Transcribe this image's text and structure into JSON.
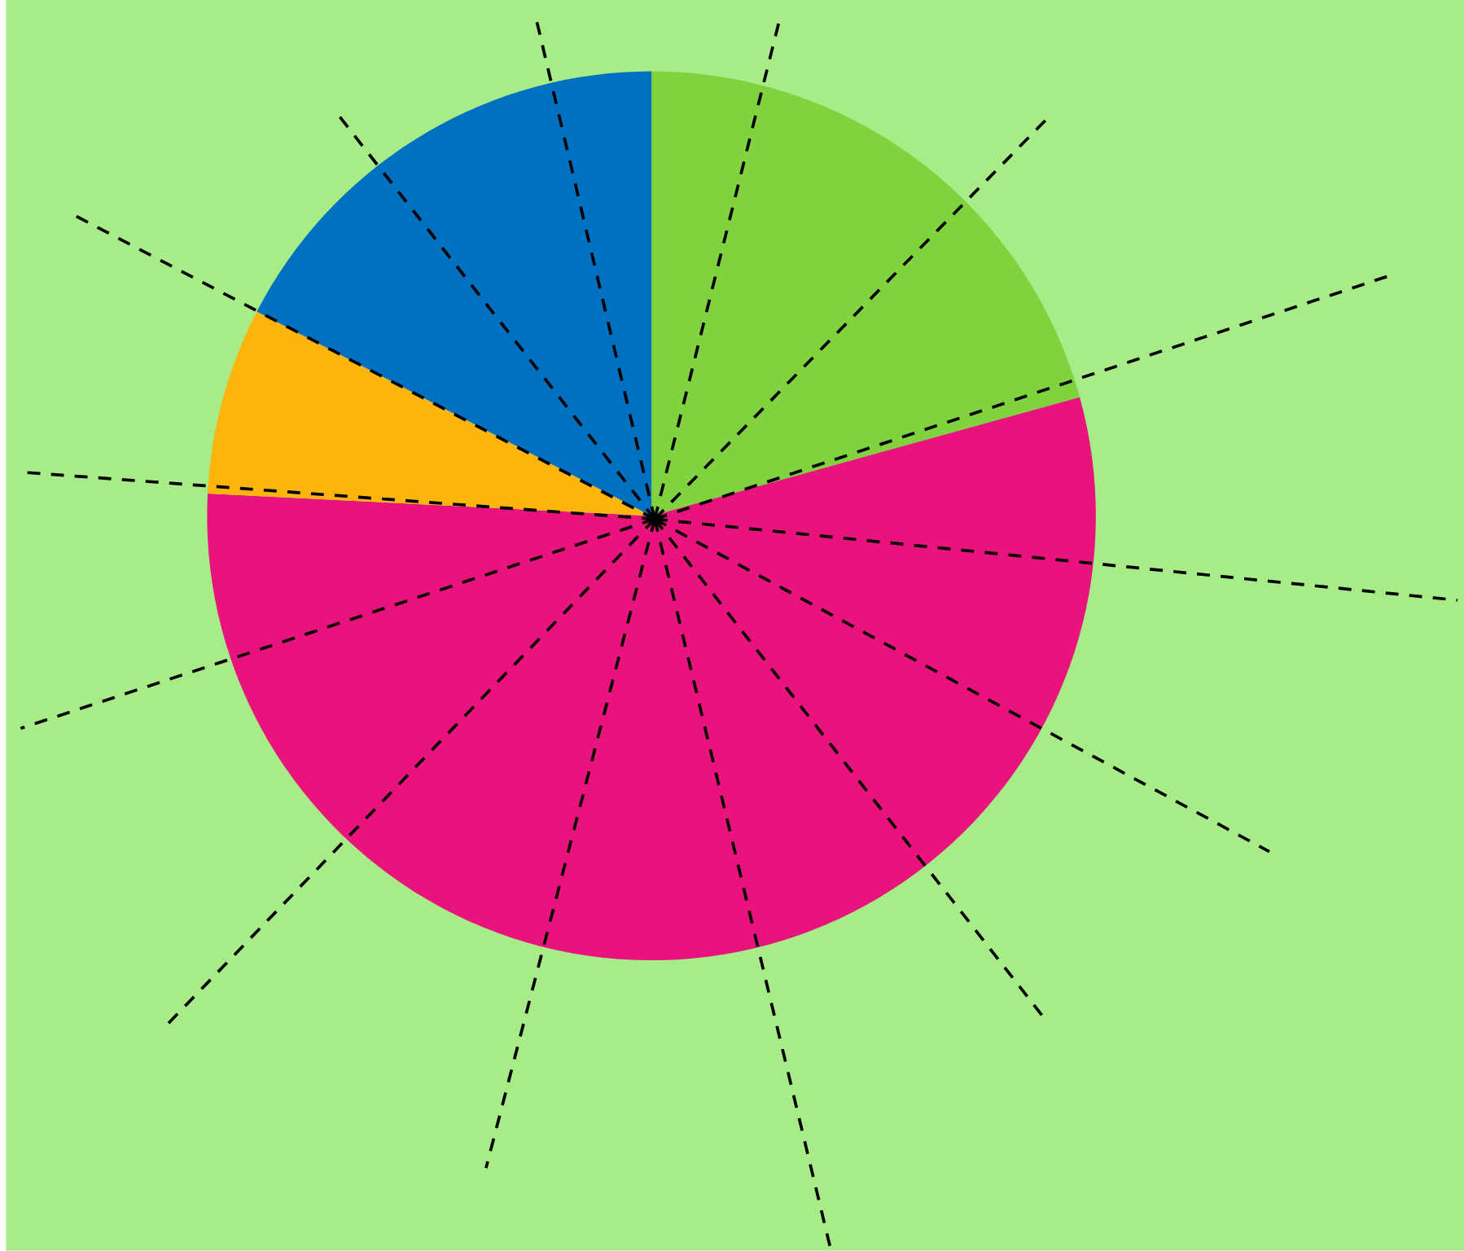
{
  "chart_data": {
    "type": "pie",
    "categories": [
      null,
      null,
      null,
      null
    ],
    "values": [
      20.7,
      55.1,
      6.8,
      17.4
    ],
    "colors": [
      "#80d23e",
      "#e8137c",
      "#fdb40d",
      "#0071c0"
    ]
  }
}
